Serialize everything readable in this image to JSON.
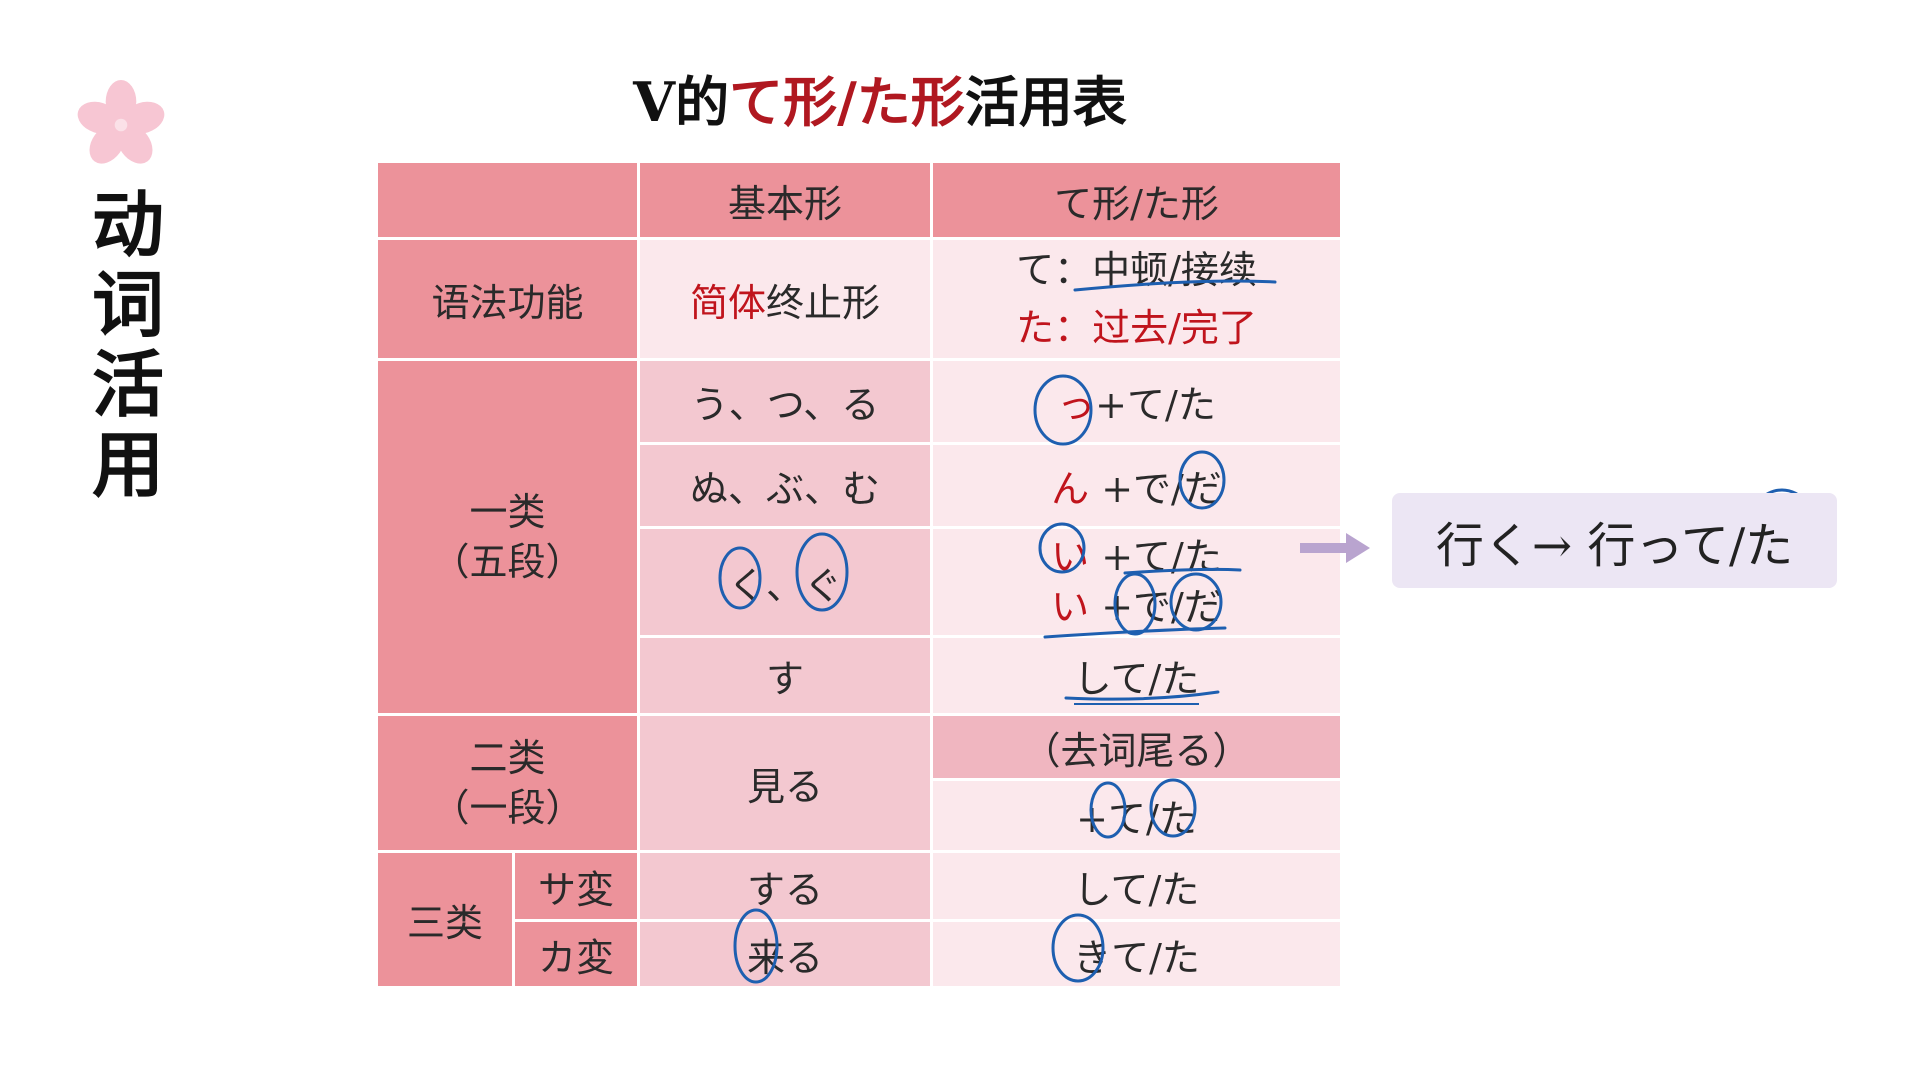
{
  "title": {
    "prefix": "V的",
    "highlight": "て形/た形",
    "suffix": "活用表"
  },
  "side_title": [
    "动",
    "词",
    "活",
    "用"
  ],
  "table": {
    "headers": [
      "",
      "基本形",
      "て形/た形"
    ],
    "grammar": {
      "label": "语法功能",
      "basic_red": "简体",
      "basic_rest": "终止形",
      "te_line": "て：中顿/接续",
      "ta_line": "た：过去/完了"
    },
    "group1": {
      "label_line1": "一类",
      "label_line2": "（五段）",
      "rows": [
        {
          "basic": "う、つ、る",
          "red": "っ",
          "form": "+て/た"
        },
        {
          "basic": "ぬ、ぶ、む",
          "red": "ん",
          "form": " +で/だ"
        },
        {
          "basic": "く、ぐ",
          "red": "い",
          "form": " +て/た",
          "red2": "い",
          "form2": " +で/だ"
        },
        {
          "basic": "す",
          "red": "",
          "form": "して/た"
        }
      ]
    },
    "group2": {
      "label_line1": "二类",
      "label_line2": "（一段）",
      "basic": "見る",
      "form_top": "（去词尾る）",
      "form_bottom": "+て/た"
    },
    "group3": {
      "label": "三类",
      "rows": [
        {
          "sub": "サ変",
          "basic": "する",
          "form": "して/た"
        },
        {
          "sub": "カ変",
          "basic": "来る",
          "form": "きて/た"
        }
      ]
    }
  },
  "example": "行く→ 行って/た",
  "colors": {
    "header": "#ec929a",
    "mid": "#f3c8d0",
    "light": "#fbe8ec",
    "accent_red": "#c0141c",
    "ink_blue": "#1e5fb0",
    "example_bg": "#ece6f4",
    "arrow": "#b9a4cf"
  }
}
